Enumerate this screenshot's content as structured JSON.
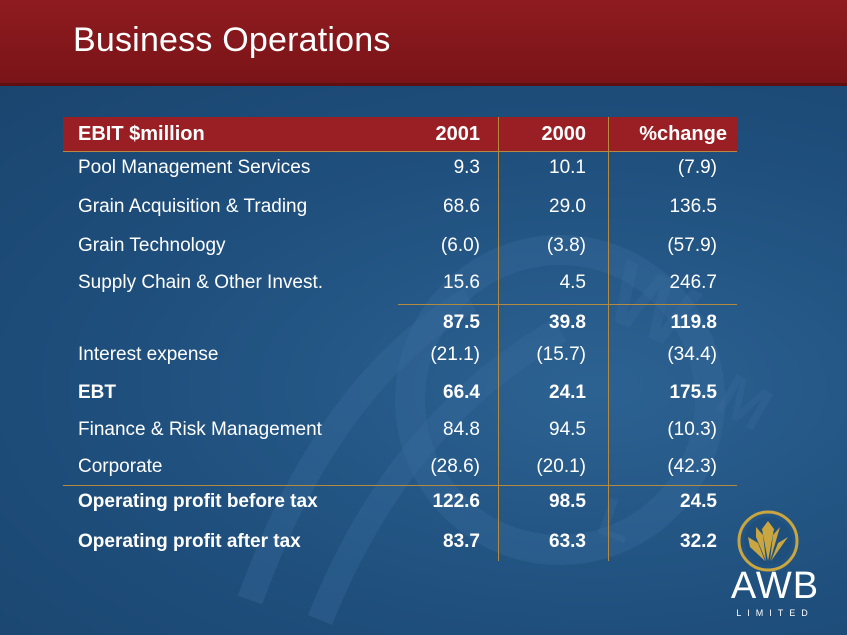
{
  "slide": {
    "title": "Business Operations"
  },
  "table": {
    "headers": {
      "label": "EBIT  $million",
      "y2001": "2001",
      "y2000": "2000",
      "change": "%change"
    },
    "rows": [
      {
        "label": "Pool Management Services",
        "y2001": "9.3",
        "y2000": "10.1",
        "change": "(7.9)",
        "bold": false
      },
      {
        "label": "Grain Acquisition & Trading",
        "y2001": "68.6",
        "y2000": "29.0",
        "change": "136.5",
        "bold": false
      },
      {
        "label": "Grain Technology",
        "y2001": "(6.0)",
        "y2000": "(3.8)",
        "change": "(57.9)",
        "bold": false
      },
      {
        "label": "Supply Chain & Other Invest.",
        "y2001": "15.6",
        "y2000": "4.5",
        "change": "246.7",
        "bold": false
      },
      {
        "label": "",
        "y2001": "87.5",
        "y2000": "39.8",
        "change": "119.8",
        "bold": true
      },
      {
        "label": "Interest expense",
        "y2001": "(21.1)",
        "y2000": "(15.7)",
        "change": "(34.4)",
        "bold": false
      },
      {
        "label": "EBT",
        "y2001": "66.4",
        "y2000": "24.1",
        "change": "175.5",
        "bold": true
      },
      {
        "label": "Finance & Risk Management",
        "y2001": "84.8",
        "y2000": "94.5",
        "change": "(10.3)",
        "bold": false
      },
      {
        "label": "Corporate",
        "y2001": "(28.6)",
        "y2000": "(20.1)",
        "change": "(42.3)",
        "bold": false
      },
      {
        "label": "Operating profit before tax",
        "y2001": "122.6",
        "y2000": "98.5",
        "change": "24.5",
        "bold": true
      },
      {
        "label": "Operating profit after tax",
        "y2001": "83.7",
        "y2000": "63.3",
        "change": "32.2",
        "bold": true
      }
    ]
  },
  "logo": {
    "name": "AWB",
    "subtitle": "LIMITED",
    "icon": "wheat-sheaf-icon"
  },
  "colors": {
    "header": "#8e1b1f",
    "background": "#1f4f7d",
    "rule": "#b58a3e",
    "gold": "#c9a640"
  }
}
